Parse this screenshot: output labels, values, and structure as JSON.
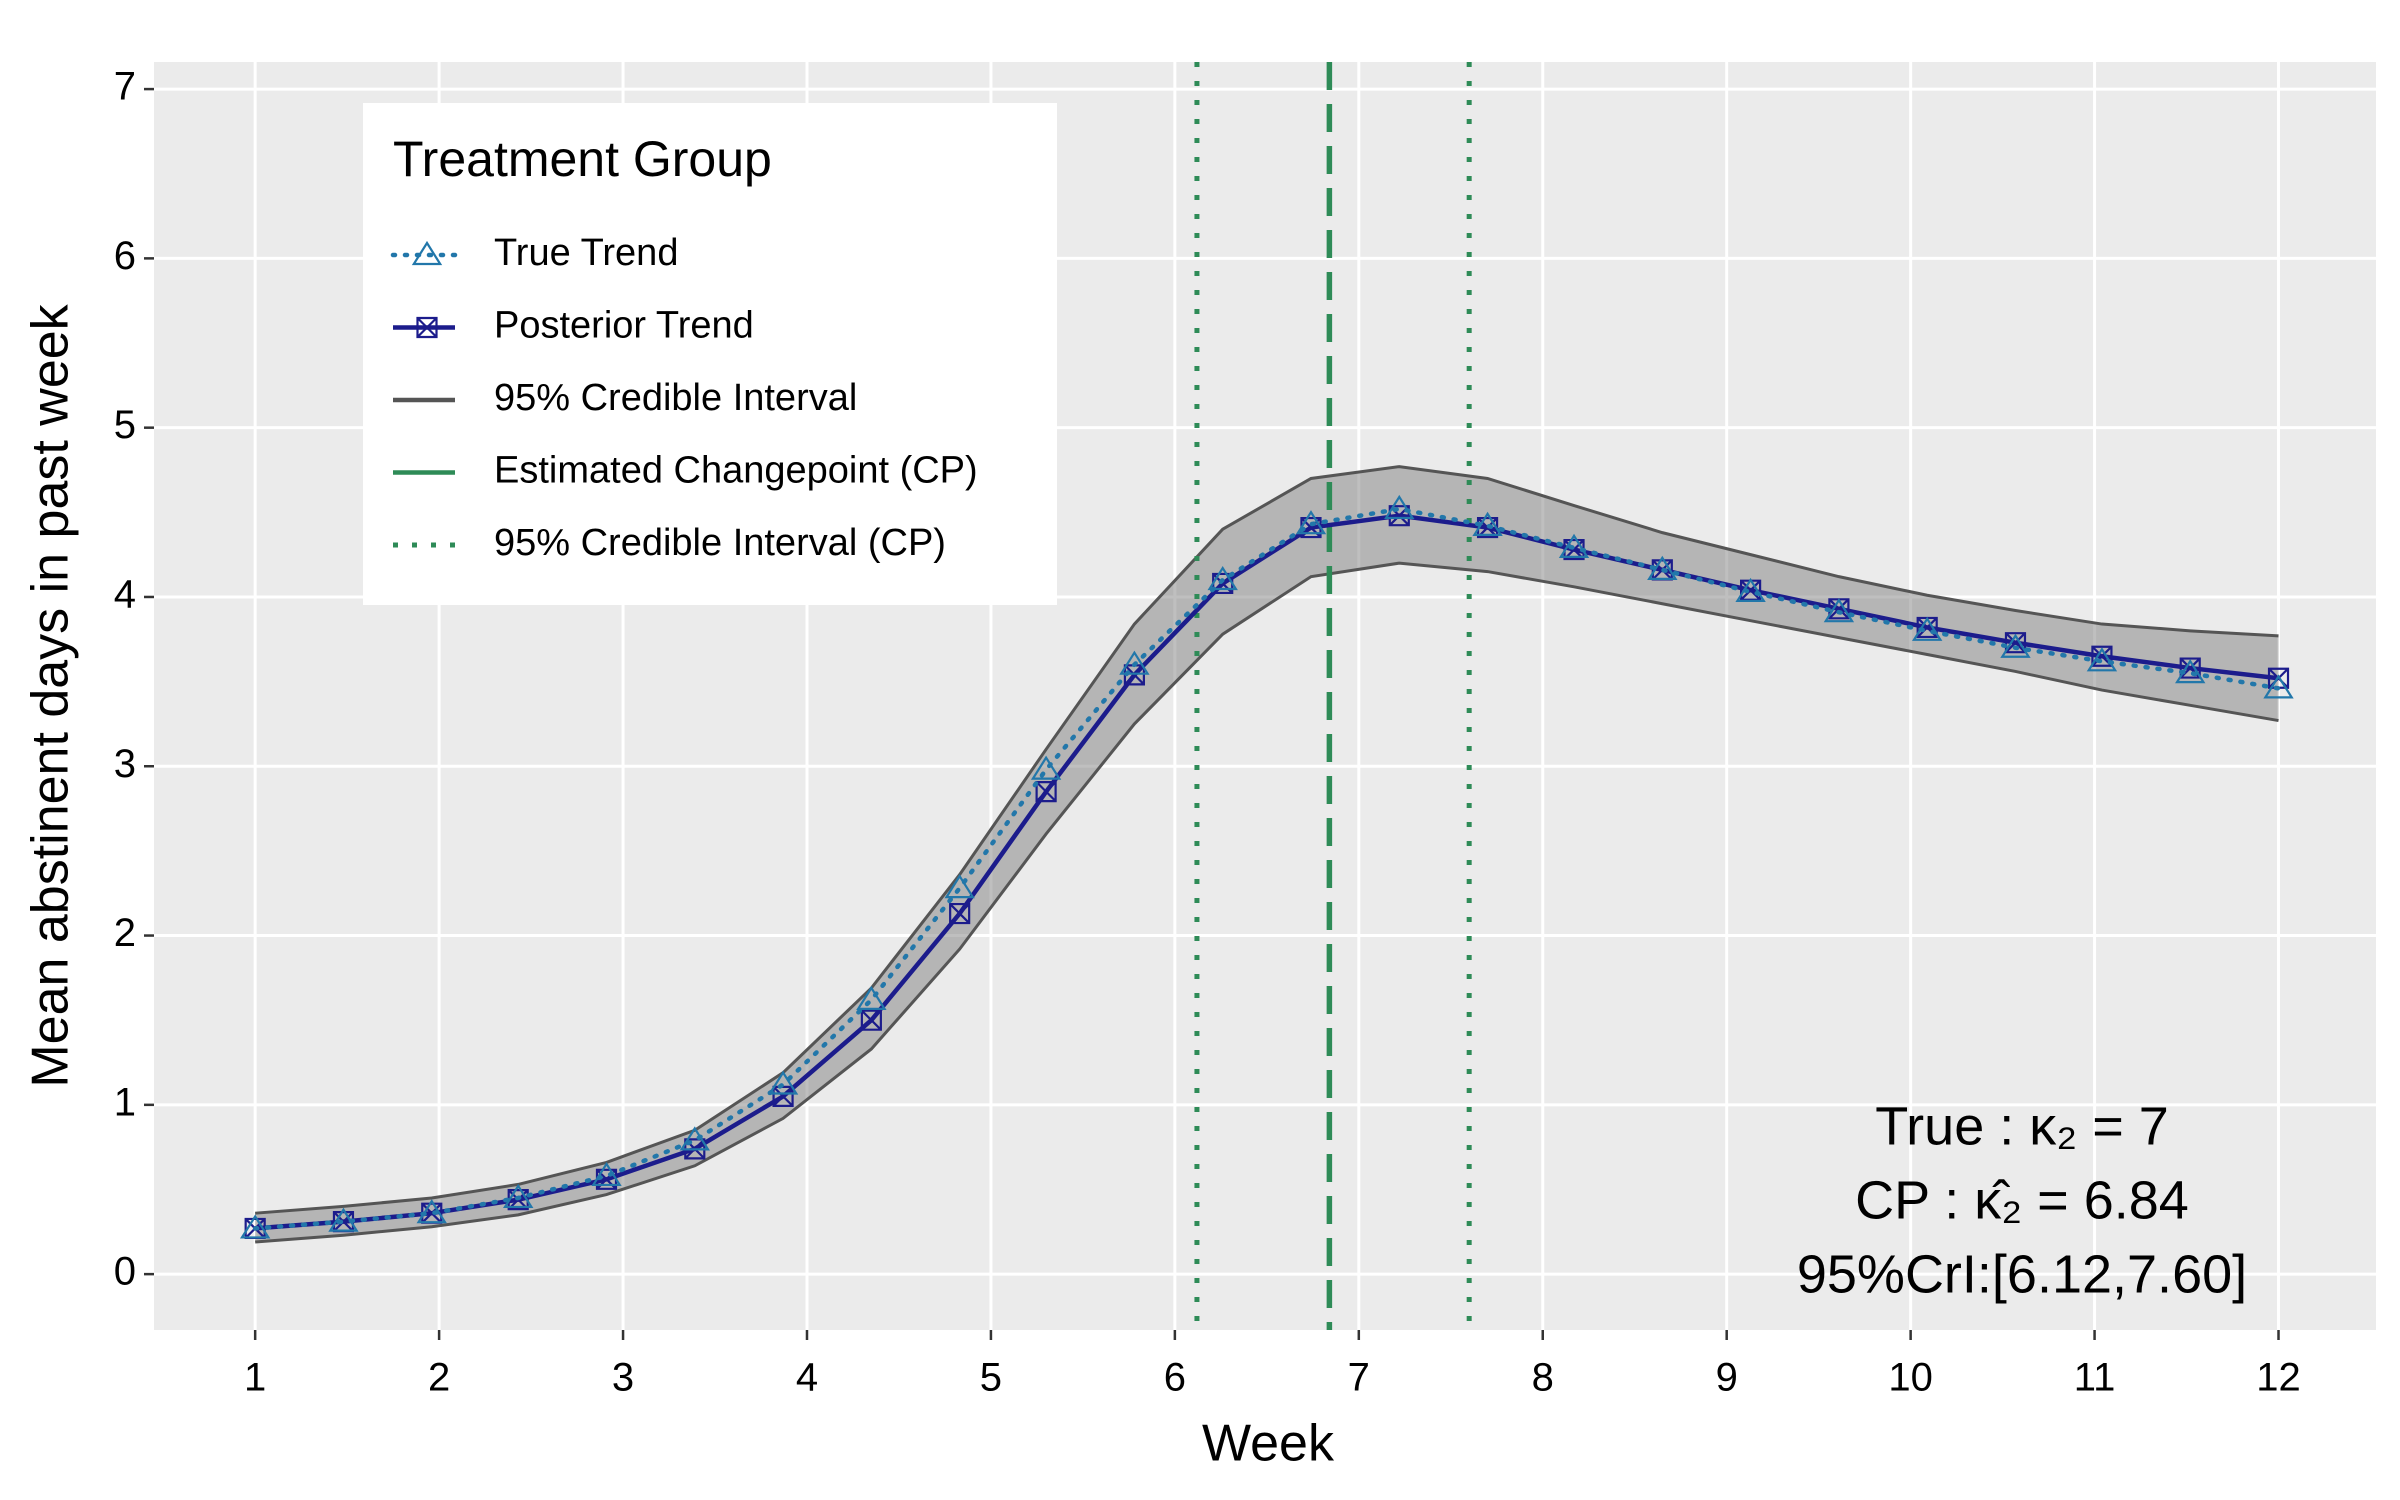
{
  "chart_data": {
    "type": "line",
    "x_label": "Week",
    "y_label": "Mean abstinent days in past week",
    "x": [
      1,
      1.48,
      1.96,
      2.43,
      2.91,
      3.39,
      3.87,
      4.35,
      4.83,
      5.3,
      5.78,
      6.26,
      6.74,
      7.22,
      7.7,
      8.17,
      8.65,
      9.13,
      9.61,
      10.09,
      10.57,
      11.04,
      11.52,
      12
    ],
    "series": [
      {
        "name": "True Trend",
        "color": "#2277aa",
        "style": "dotted",
        "marker": "triangle",
        "values": [
          0.27,
          0.31,
          0.36,
          0.45,
          0.58,
          0.79,
          1.12,
          1.62,
          2.28,
          2.98,
          3.6,
          4.1,
          4.43,
          4.52,
          4.42,
          4.29,
          4.16,
          4.03,
          3.91,
          3.8,
          3.7,
          3.62,
          3.55,
          3.46
        ]
      },
      {
        "name": "Posterior Trend",
        "color": "#1c1c8c",
        "style": "solid",
        "marker": "boxcross",
        "values": [
          0.27,
          0.31,
          0.36,
          0.44,
          0.56,
          0.74,
          1.05,
          1.5,
          2.13,
          2.85,
          3.54,
          4.08,
          4.41,
          4.48,
          4.41,
          4.28,
          4.16,
          4.04,
          3.93,
          3.82,
          3.73,
          3.65,
          3.58,
          3.52
        ]
      }
    ],
    "band": {
      "name": "95% Credible Interval",
      "color": "#555555",
      "lower": [
        0.19,
        0.23,
        0.28,
        0.35,
        0.47,
        0.64,
        0.92,
        1.33,
        1.92,
        2.6,
        3.25,
        3.78,
        4.12,
        4.2,
        4.15,
        4.06,
        3.96,
        3.86,
        3.76,
        3.66,
        3.56,
        3.45,
        3.36,
        3.27
      ],
      "upper": [
        0.36,
        0.4,
        0.45,
        0.53,
        0.66,
        0.85,
        1.19,
        1.69,
        2.36,
        3.1,
        3.84,
        4.4,
        4.7,
        4.77,
        4.7,
        4.54,
        4.38,
        4.25,
        4.12,
        4.01,
        3.92,
        3.84,
        3.8,
        3.77
      ]
    },
    "changepoint": {
      "name": "Estimated Changepoint (CP)",
      "color": "#2e8b57",
      "value": 6.84
    },
    "changepoint_interval": {
      "name": "95% Credible Interval (CP)",
      "color": "#2e8b57",
      "values": [
        6.12,
        7.6
      ]
    },
    "legend": {
      "title": "Treatment Group",
      "position": "top-left"
    },
    "annotations": [
      "True :  κ₂ = 7",
      "CP :  κ̂₂ = 6.84",
      "95%CrI:[6.12,7.60]"
    ],
    "xlim": [
      0.45,
      12.53
    ],
    "xticks": [
      1,
      2,
      3,
      4,
      5,
      6,
      7,
      8,
      9,
      10,
      11,
      12
    ],
    "ylim": [
      -0.33,
      7.16
    ],
    "yticks": [
      0,
      1,
      2,
      3,
      4,
      5,
      6,
      7
    ],
    "grid": true
  }
}
